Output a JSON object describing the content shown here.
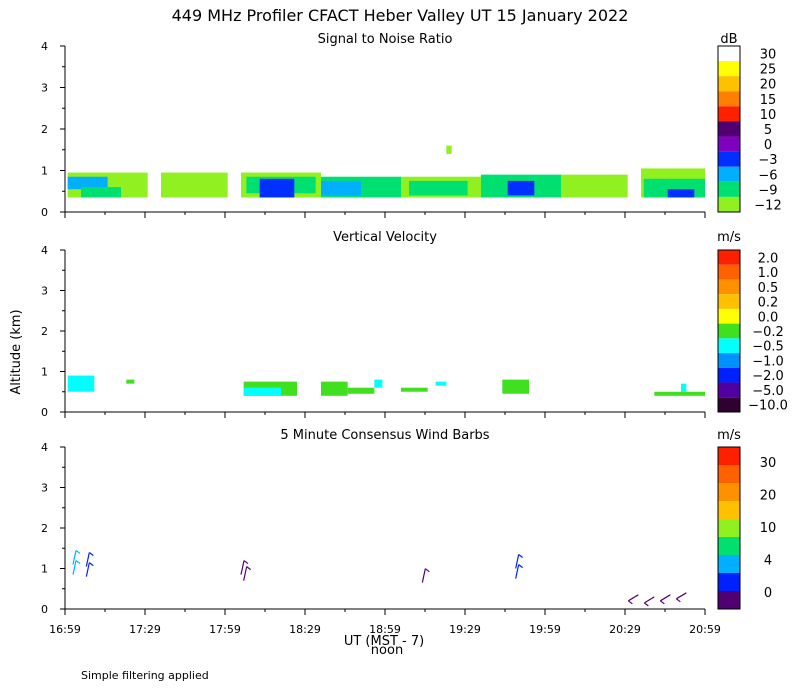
{
  "figure": {
    "title": "449 MHz Profiler CFACT Heber Valley UT 15 January 2022",
    "ylabel": "Altitude (km)",
    "xlabel": "UT  (MST - 7)",
    "noon_label": "noon",
    "footnote": "Simple filtering applied"
  },
  "chart_data": [
    {
      "type": "heatmap",
      "title": "Signal to Noise Ratio",
      "x": [
        "16:59",
        "17:29",
        "17:59",
        "18:29",
        "18:59",
        "19:29",
        "19:59",
        "20:29",
        "20:59"
      ],
      "xlim": [
        "16:59",
        "20:59"
      ],
      "ylim": [
        0,
        4
      ],
      "yticks": [
        "0",
        "1",
        "2",
        "3",
        "4"
      ],
      "units": "dB",
      "colorbar": {
        "labels": [
          "30",
          "25",
          "20",
          "15",
          "10",
          "5",
          "0",
          "−3",
          "−6",
          "−9",
          "−12"
        ],
        "colors": [
          "#ffffff",
          "#ffff00",
          "#ffc000",
          "#ff8000",
          "#ff2000",
          "#500070",
          "#8000c0",
          "#0030ff",
          "#00b0ff",
          "#00e070",
          "#90f020"
        ]
      },
      "data": [
        {
          "t0": "17:00",
          "t1": "17:30",
          "z0": 0.35,
          "z1": 0.95,
          "value": -12
        },
        {
          "t0": "17:00",
          "t1": "17:15",
          "z0": 0.55,
          "z1": 0.85,
          "value": -6
        },
        {
          "t0": "17:05",
          "t1": "17:20",
          "z0": 0.35,
          "z1": 0.6,
          "value": -9
        },
        {
          "t0": "17:35",
          "t1": "18:00",
          "z0": 0.35,
          "z1": 0.95,
          "value": -12
        },
        {
          "t0": "18:05",
          "t1": "18:35",
          "z0": 0.35,
          "z1": 0.95,
          "value": -12
        },
        {
          "t0": "18:07",
          "t1": "18:33",
          "z0": 0.45,
          "z1": 0.85,
          "value": -9
        },
        {
          "t0": "18:12",
          "t1": "18:25",
          "z0": 0.35,
          "z1": 0.8,
          "value": -3
        },
        {
          "t0": "18:35",
          "t1": "19:05",
          "z0": 0.35,
          "z1": 0.85,
          "value": -9
        },
        {
          "t0": "18:35",
          "t1": "18:50",
          "z0": 0.4,
          "z1": 0.75,
          "value": -6
        },
        {
          "t0": "19:05",
          "t1": "19:35",
          "z0": 0.35,
          "z1": 0.85,
          "value": -12
        },
        {
          "t0": "19:08",
          "t1": "19:30",
          "z0": 0.4,
          "z1": 0.75,
          "value": -9
        },
        {
          "t0": "19:22",
          "t1": "19:24",
          "z0": 1.4,
          "z1": 1.6,
          "value": -12
        },
        {
          "t0": "19:35",
          "t1": "20:05",
          "z0": 0.35,
          "z1": 0.9,
          "value": -9
        },
        {
          "t0": "19:45",
          "t1": "19:55",
          "z0": 0.4,
          "z1": 0.75,
          "value": -3
        },
        {
          "t0": "20:05",
          "t1": "20:30",
          "z0": 0.35,
          "z1": 0.9,
          "value": -12
        },
        {
          "t0": "20:35",
          "t1": "20:59",
          "z0": 0.35,
          "z1": 1.05,
          "value": -12
        },
        {
          "t0": "20:36",
          "t1": "20:59",
          "z0": 0.35,
          "z1": 0.8,
          "value": -9
        },
        {
          "t0": "20:45",
          "t1": "20:55",
          "z0": 0.35,
          "z1": 0.55,
          "value": -3
        }
      ]
    },
    {
      "type": "heatmap",
      "title": "Vertical Velocity",
      "x": [
        "16:59",
        "17:29",
        "17:59",
        "18:29",
        "18:59",
        "19:29",
        "19:59",
        "20:29",
        "20:59"
      ],
      "xlim": [
        "16:59",
        "20:59"
      ],
      "ylim": [
        0,
        4
      ],
      "yticks": [
        "0",
        "1",
        "2",
        "3",
        "4"
      ],
      "units": "m/s",
      "colorbar": {
        "labels": [
          "2.0",
          "1.0",
          "0.5",
          "0.2",
          "0.0",
          "−0.2",
          "−0.5",
          "−1.0",
          "−2.0",
          "−5.0",
          "−10.0"
        ],
        "colors": [
          "#ff2000",
          "#ff6000",
          "#ff9000",
          "#ffc000",
          "#ffff00",
          "#40e020",
          "#00ffff",
          "#0090ff",
          "#0020ff",
          "#5000a0",
          "#300030"
        ]
      },
      "data": [
        {
          "t0": "17:00",
          "t1": "17:10",
          "z0": 0.5,
          "z1": 0.9,
          "value": -0.5
        },
        {
          "t0": "17:22",
          "t1": "17:25",
          "z0": 0.7,
          "z1": 0.8,
          "value": -0.2
        },
        {
          "t0": "18:06",
          "t1": "18:26",
          "z0": 0.4,
          "z1": 0.75,
          "value": -0.2
        },
        {
          "t0": "18:06",
          "t1": "18:20",
          "z0": 0.4,
          "z1": 0.6,
          "value": -0.5
        },
        {
          "t0": "18:35",
          "t1": "18:45",
          "z0": 0.4,
          "z1": 0.75,
          "value": -0.2
        },
        {
          "t0": "18:45",
          "t1": "18:55",
          "z0": 0.45,
          "z1": 0.6,
          "value": -0.2
        },
        {
          "t0": "18:55",
          "t1": "18:58",
          "z0": 0.6,
          "z1": 0.8,
          "value": -0.5
        },
        {
          "t0": "19:05",
          "t1": "19:15",
          "z0": 0.5,
          "z1": 0.6,
          "value": -0.2
        },
        {
          "t0": "19:18",
          "t1": "19:22",
          "z0": 0.65,
          "z1": 0.75,
          "value": -0.5
        },
        {
          "t0": "19:43",
          "t1": "19:53",
          "z0": 0.45,
          "z1": 0.8,
          "value": -0.2
        },
        {
          "t0": "20:40",
          "t1": "20:59",
          "z0": 0.4,
          "z1": 0.5,
          "value": -0.2
        },
        {
          "t0": "20:50",
          "t1": "20:52",
          "z0": 0.5,
          "z1": 0.7,
          "value": -0.5
        }
      ]
    },
    {
      "type": "scatter",
      "title": "5 Minute Consensus Wind Barbs",
      "x": [
        "16:59",
        "17:29",
        "17:59",
        "18:29",
        "18:59",
        "19:29",
        "19:59",
        "20:29",
        "20:59"
      ],
      "xlim": [
        "16:59",
        "20:59"
      ],
      "ylim": [
        0,
        4
      ],
      "yticks": [
        "0",
        "1",
        "2",
        "3",
        "4"
      ],
      "units": "m/s",
      "colorbar": {
        "labels": [
          "30",
          "20",
          "10",
          "4",
          "0"
        ],
        "colors": [
          "#ff2000",
          "#ff6000",
          "#ff9000",
          "#ffc000",
          "#90f020",
          "#00e070",
          "#00b0ff",
          "#0020ff",
          "#500070"
        ]
      },
      "data": [
        {
          "time": "17:02",
          "z": 0.85,
          "speed": 5
        },
        {
          "time": "17:02",
          "z": 1.1,
          "speed": 6
        },
        {
          "time": "17:07",
          "z": 0.8,
          "speed": 3
        },
        {
          "time": "17:07",
          "z": 1.05,
          "speed": 3
        },
        {
          "time": "18:05",
          "z": 0.85,
          "speed": 2
        },
        {
          "time": "18:06",
          "z": 0.7,
          "speed": 2
        },
        {
          "time": "19:13",
          "z": 0.65,
          "speed": 2
        },
        {
          "time": "19:48",
          "z": 0.75,
          "speed": 3
        },
        {
          "time": "19:48",
          "z": 1.0,
          "speed": 3
        },
        {
          "time": "20:34",
          "z": 0.35,
          "speed": 2
        },
        {
          "time": "20:40",
          "z": 0.3,
          "speed": 2
        },
        {
          "time": "20:46",
          "z": 0.35,
          "speed": 2
        },
        {
          "time": "20:52",
          "z": 0.4,
          "speed": 2
        }
      ]
    }
  ]
}
